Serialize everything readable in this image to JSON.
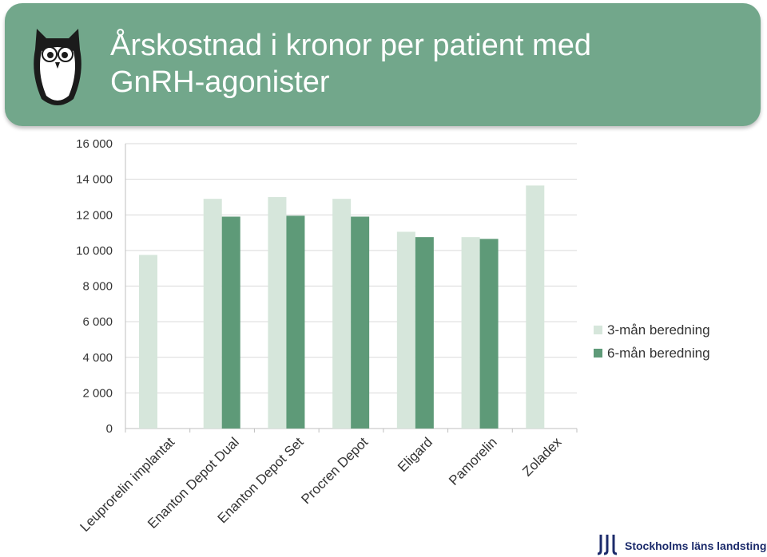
{
  "slide": {
    "title_line1": "Årskostnad i kronor per patient med",
    "title_line2": "GnRH-agonister",
    "logo_text": "Stockholms läns landsting",
    "logo_icon": "sll-logo-icon",
    "owl_icon": "owl-icon",
    "colors": {
      "banner": "#72a78b",
      "series_3m": "#d6e6db",
      "series_6m": "#5e9a78",
      "logo": "#1c2b6b"
    }
  },
  "chart_data": {
    "type": "bar",
    "categories": [
      "Leuprorelin implantat",
      "Enanton Depot Dual",
      "Enanton Depot Set",
      "Procren Depot",
      "Eligard",
      "Pamorelin",
      "Zoladex"
    ],
    "series": [
      {
        "name": "3-mån beredning",
        "values": [
          9750,
          12900,
          13000,
          12900,
          11050,
          10750,
          13650
        ]
      },
      {
        "name": "6-mån beredning",
        "values": [
          null,
          11900,
          11950,
          11900,
          10750,
          10650,
          null
        ]
      }
    ],
    "ylim": [
      0,
      16000
    ],
    "yticks": [
      0,
      2000,
      4000,
      6000,
      8000,
      10000,
      12000,
      14000,
      16000
    ],
    "ytick_labels": [
      "0",
      "2 000",
      "4 000",
      "6 000",
      "8 000",
      "10 000",
      "12 000",
      "14 000",
      "16 000"
    ],
    "grid": true,
    "legend": "right"
  }
}
